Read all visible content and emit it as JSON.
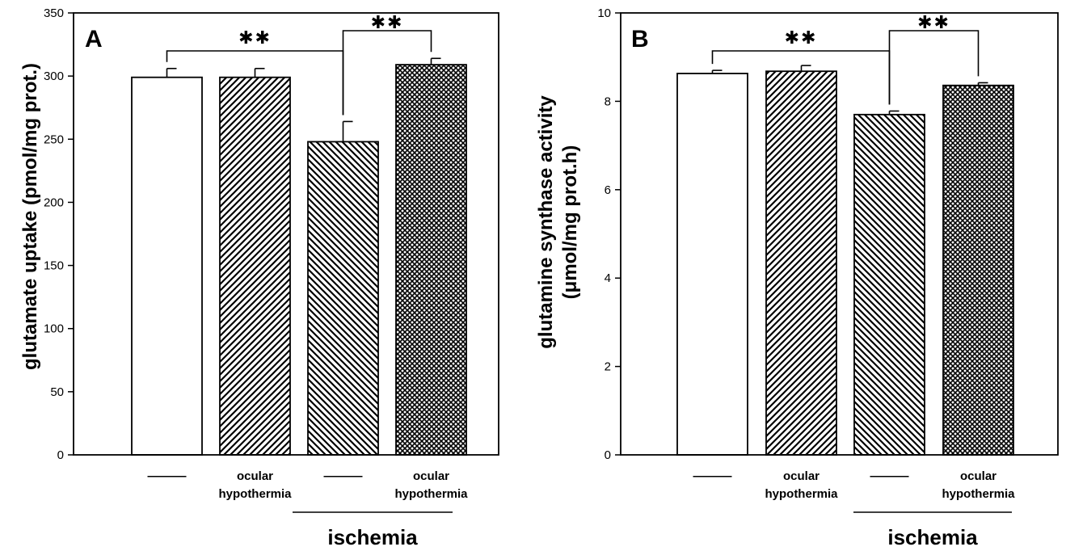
{
  "chart_data": [
    {
      "type": "bar",
      "panel_label": "A",
      "ylabel_lines": [
        "glutamate uptake (pmol/mg prot.)"
      ],
      "ylim": [
        0,
        350
      ],
      "yticks": [
        0,
        50,
        100,
        150,
        200,
        250,
        300,
        350
      ],
      "categories": [
        "——",
        "ocular hypothermia",
        "——",
        "ocular hypothermia"
      ],
      "values": [
        299,
        299,
        248,
        309
      ],
      "errors": [
        7,
        7,
        16,
        5
      ],
      "bar_patterns": [
        "none",
        "diag-forward",
        "diag-back",
        "crosshatch"
      ],
      "group_bracket": {
        "label": "ischemia",
        "categories": [
          2,
          3
        ]
      },
      "significance": [
        {
          "label": "✱✱",
          "from": 0,
          "to": 2
        },
        {
          "label": "✱✱",
          "from": 2,
          "to": 3
        }
      ]
    },
    {
      "type": "bar",
      "panel_label": "B",
      "ylabel_lines": [
        "glutamine synthase activity",
        "(μmol/mg prot.h)"
      ],
      "ylim": [
        0,
        10
      ],
      "yticks": [
        0,
        2,
        4,
        6,
        8,
        10
      ],
      "categories": [
        "——",
        "ocular hypothermia",
        "——",
        "ocular hypothermia"
      ],
      "values": [
        8.63,
        8.68,
        7.7,
        8.36
      ],
      "errors": [
        0.07,
        0.13,
        0.08,
        0.06
      ],
      "bar_patterns": [
        "none",
        "diag-forward",
        "diag-back",
        "crosshatch"
      ],
      "group_bracket": {
        "label": "ischemia",
        "categories": [
          2,
          3
        ]
      },
      "significance": [
        {
          "label": "✱✱",
          "from": 0,
          "to": 2
        },
        {
          "label": "✱✱",
          "from": 2,
          "to": 3
        }
      ]
    }
  ]
}
